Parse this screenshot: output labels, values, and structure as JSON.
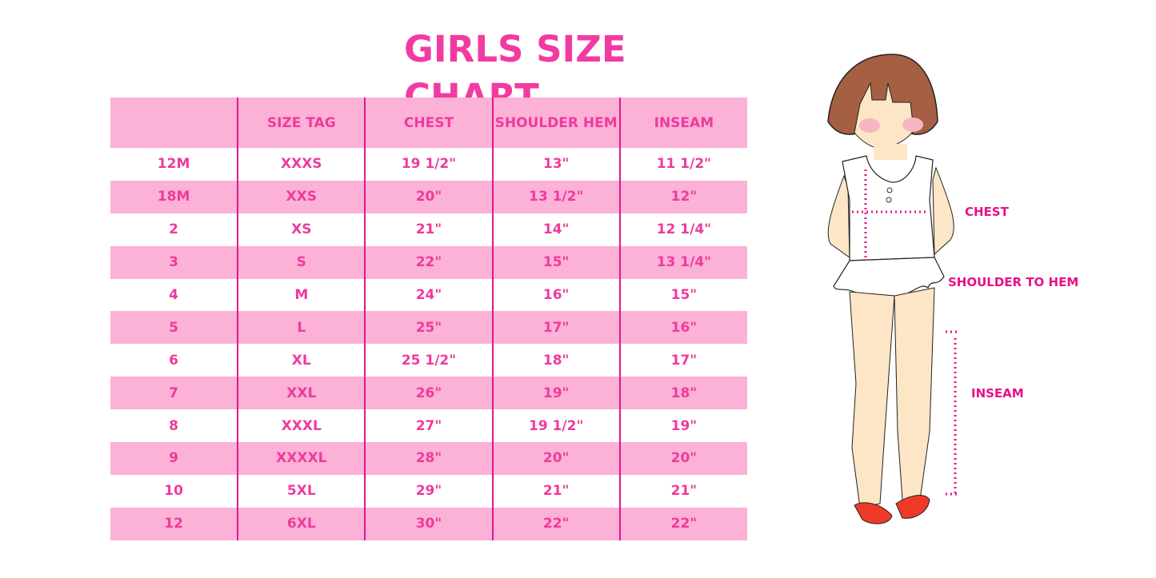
{
  "title": "GIRLS SIZE CHART",
  "table": {
    "headers": [
      "",
      "SIZE TAG",
      "CHEST",
      "SHOULDER HEM",
      "INSEAM"
    ],
    "rows": [
      [
        "12M",
        "XXXS",
        "19 1/2\"",
        "13\"",
        "11 1/2\""
      ],
      [
        "18M",
        "XXS",
        "20\"",
        "13 1/2\"",
        "12\""
      ],
      [
        "2",
        "XS",
        "21\"",
        "14\"",
        "12 1/4\""
      ],
      [
        "3",
        "S",
        "22\"",
        "15\"",
        "13 1/4\""
      ],
      [
        "4",
        "M",
        "24\"",
        "16\"",
        "15\""
      ],
      [
        "5",
        "L",
        "25\"",
        "17\"",
        "16\""
      ],
      [
        "6",
        "XL",
        "25 1/2\"",
        "18\"",
        "17\""
      ],
      [
        "7",
        "XXL",
        "26\"",
        "19\"",
        "18\""
      ],
      [
        "8",
        "XXXL",
        "27\"",
        "19 1/2\"",
        "19\""
      ],
      [
        "9",
        "XXXXL",
        "28\"",
        "20\"",
        "20\""
      ],
      [
        "10",
        "5XL",
        "29\"",
        "21\"",
        "21\""
      ],
      [
        "12",
        "6XL",
        "30\"",
        "22\"",
        "22\""
      ]
    ]
  },
  "diagram": {
    "chest_label": "CHEST",
    "shoulder_label": "SHOULDER TO HEM",
    "inseam_label": "INSEAM"
  },
  "colors": {
    "accent": "#f23ba0",
    "row_pink": "#fcb1d6",
    "divider": "#e0198c"
  }
}
